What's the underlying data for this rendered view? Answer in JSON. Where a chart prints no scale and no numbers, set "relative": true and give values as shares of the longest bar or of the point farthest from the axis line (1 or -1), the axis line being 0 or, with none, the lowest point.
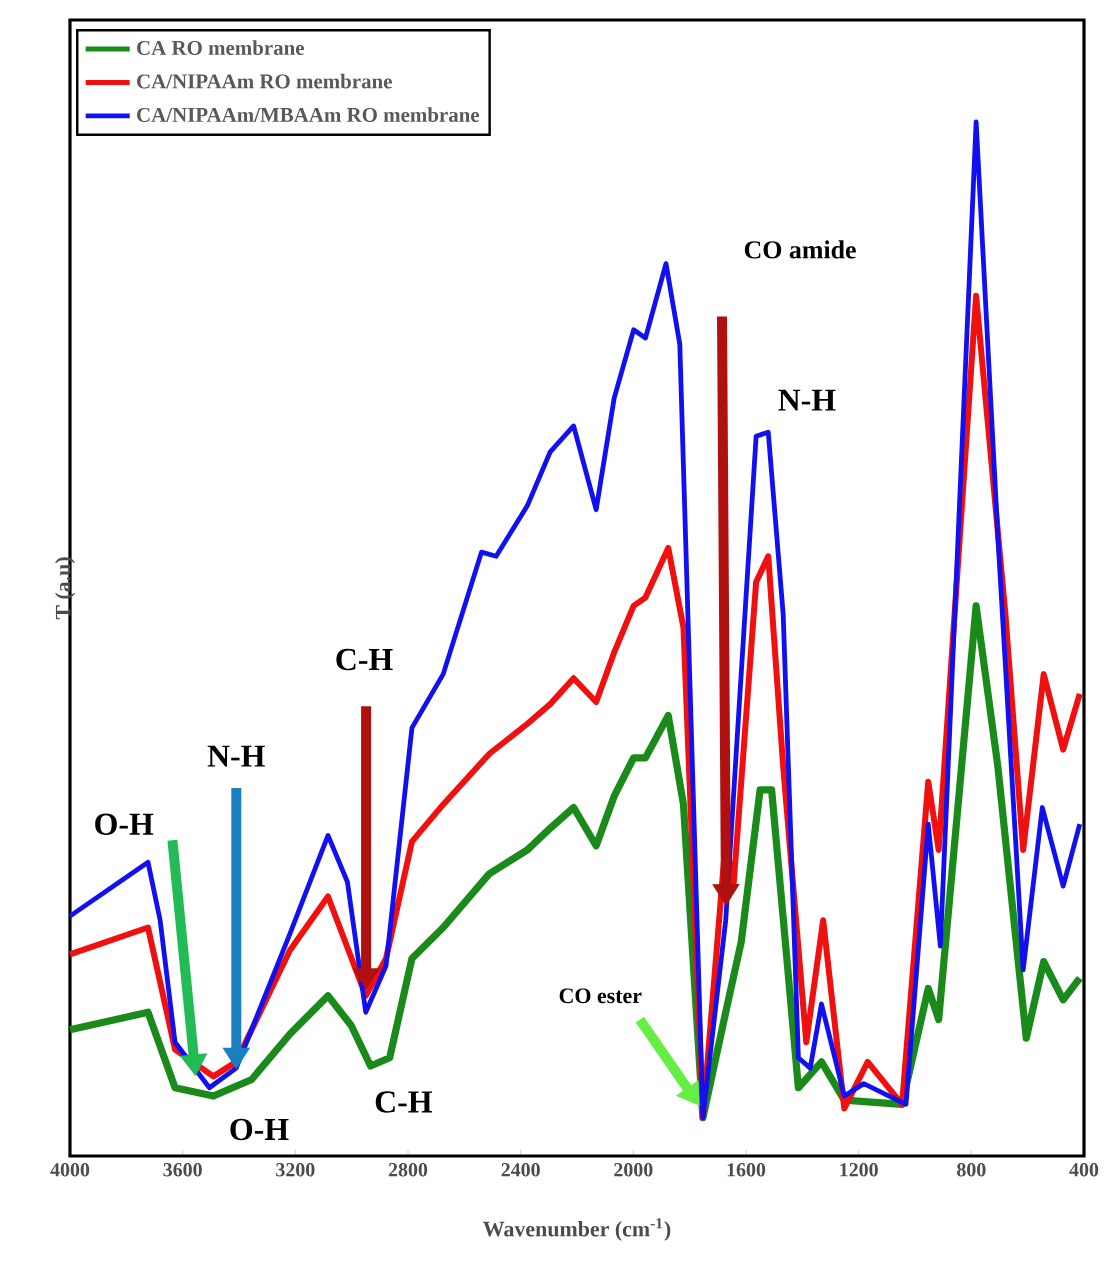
{
  "chart_data": {
    "type": "line",
    "xlabel": "Wavenumber (cm$^{-1}$)",
    "ylabel": "T (a.u)",
    "relative": true,
    "xlim": [
      4000,
      400
    ],
    "xticks": [
      4000,
      3600,
      3200,
      2800,
      2400,
      2000,
      1600,
      1200,
      800,
      400
    ],
    "legend": "top left",
    "grid": false,
    "marker": "none",
    "line_style": "solid",
    "series": [
      {
        "name": "CA RO membrane",
        "color": "#1a8a1a",
        "x": [
          4000,
          3723,
          3627,
          3491,
          3355,
          3219,
          3084,
          3001,
          2933,
          2865,
          2786,
          2675,
          2511,
          2376,
          2295,
          2212,
          2132,
          2068,
          1999,
          1957,
          1876,
          1822,
          1753,
          1672,
          1617,
          1550,
          1509,
          1455,
          1414,
          1332,
          1251,
          1046,
          953,
          916,
          783,
          706,
          605,
          543,
          474,
          415
        ],
        "values": [
          0.122,
          0.139,
          0.066,
          0.058,
          0.074,
          0.118,
          0.155,
          0.126,
          0.087,
          0.095,
          0.191,
          0.221,
          0.273,
          0.296,
          0.317,
          0.337,
          0.3,
          0.348,
          0.385,
          0.385,
          0.426,
          0.34,
          0.037,
          0.139,
          0.207,
          0.354,
          0.354,
          0.191,
          0.066,
          0.091,
          0.054,
          0.05,
          0.162,
          0.132,
          0.532,
          0.377,
          0.114,
          0.188,
          0.151,
          0.172
        ]
      },
      {
        "name": "CA/NIPAAm RO membrane",
        "color": "#f01010",
        "x": [
          4000,
          3723,
          3627,
          3491,
          3410,
          3219,
          3084,
          2950,
          2878,
          2786,
          2675,
          2511,
          2376,
          2295,
          2212,
          2132,
          2068,
          1999,
          1957,
          1876,
          1822,
          1753,
          1672,
          1645,
          1564,
          1521,
          1468,
          1386,
          1326,
          1251,
          1168,
          1046,
          953,
          916,
          783,
          679,
          616,
          543,
          474,
          415
        ],
        "values": [
          0.195,
          0.221,
          0.103,
          0.077,
          0.091,
          0.199,
          0.251,
          0.155,
          0.191,
          0.304,
          0.34,
          0.389,
          0.418,
          0.437,
          0.462,
          0.439,
          0.487,
          0.532,
          0.54,
          0.588,
          0.511,
          0.037,
          0.306,
          0.259,
          0.555,
          0.58,
          0.377,
          0.11,
          0.228,
          0.046,
          0.091,
          0.05,
          0.362,
          0.296,
          0.832,
          0.524,
          0.296,
          0.466,
          0.393,
          0.447
        ]
      },
      {
        "name": "CA/NIPAAm/MBAAm RO membrane",
        "color": "#1010f0",
        "x": [
          4000,
          3723,
          3680,
          3627,
          3505,
          3410,
          3219,
          3084,
          3015,
          2950,
          2878,
          2786,
          2675,
          2539,
          2487,
          2376,
          2295,
          2212,
          2132,
          2068,
          1999,
          1957,
          1884,
          1835,
          1753,
          1672,
          1564,
          1521,
          1468,
          1414,
          1372,
          1332,
          1251,
          1182,
          1032,
          953,
          910,
          783,
          706,
          616,
          548,
          474,
          415
        ],
        "values": [
          0.232,
          0.284,
          0.228,
          0.11,
          0.066,
          0.085,
          0.215,
          0.31,
          0.265,
          0.139,
          0.184,
          0.414,
          0.466,
          0.584,
          0.58,
          0.629,
          0.681,
          0.706,
          0.625,
          0.733,
          0.799,
          0.791,
          0.863,
          0.785,
          0.037,
          0.228,
          0.696,
          0.7,
          0.524,
          0.095,
          0.085,
          0.147,
          0.058,
          0.07,
          0.05,
          0.321,
          0.203,
          1.0,
          0.6,
          0.18,
          0.337,
          0.261,
          0.321
        ]
      }
    ],
    "annotations": [
      "O-H",
      "N-H",
      "C-H",
      "CO amide",
      {
        "text": "N-H",
        "x": 1540,
        "y": 0.7
      },
      "CO ester",
      {
        "text": "O-H",
        "x": 3400,
        "y": 0.074
      },
      {
        "text": "C-H",
        "x": 2930,
        "y": 0.087
      }
    ]
  }
}
